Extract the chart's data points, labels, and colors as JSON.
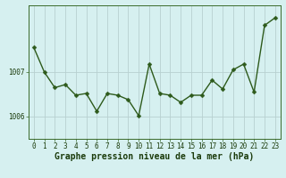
{
  "x": [
    0,
    1,
    2,
    3,
    4,
    5,
    6,
    7,
    8,
    9,
    10,
    11,
    12,
    13,
    14,
    15,
    16,
    17,
    18,
    19,
    20,
    21,
    22,
    23
  ],
  "y": [
    1007.55,
    1007.0,
    1006.65,
    1006.72,
    1006.48,
    1006.52,
    1006.12,
    1006.52,
    1006.48,
    1006.38,
    1006.02,
    1007.18,
    1006.52,
    1006.48,
    1006.32,
    1006.48,
    1006.48,
    1006.82,
    1006.62,
    1007.05,
    1007.18,
    1006.55,
    1008.05,
    1008.22
  ],
  "line_color": "#2d5a1b",
  "marker_color": "#2d5a1b",
  "bg_color": "#d6f0f0",
  "grid_color": "#b8d0d0",
  "axis_label_color": "#1a3a0a",
  "tick_label_color": "#1a3a0a",
  "xlabel": "Graphe pression niveau de la mer (hPa)",
  "ylim": [
    1005.5,
    1008.5
  ],
  "yticks": [
    1006,
    1007
  ],
  "xticks": [
    0,
    1,
    2,
    3,
    4,
    5,
    6,
    7,
    8,
    9,
    10,
    11,
    12,
    13,
    14,
    15,
    16,
    17,
    18,
    19,
    20,
    21,
    22,
    23
  ],
  "xtick_labels": [
    "0",
    "1",
    "2",
    "3",
    "4",
    "5",
    "6",
    "7",
    "8",
    "9",
    "10",
    "11",
    "12",
    "13",
    "14",
    "15",
    "16",
    "17",
    "18",
    "19",
    "20",
    "21",
    "22",
    "23"
  ],
  "xlabel_fontsize": 7.0,
  "tick_fontsize": 5.5,
  "line_width": 1.0,
  "marker_size": 2.5
}
